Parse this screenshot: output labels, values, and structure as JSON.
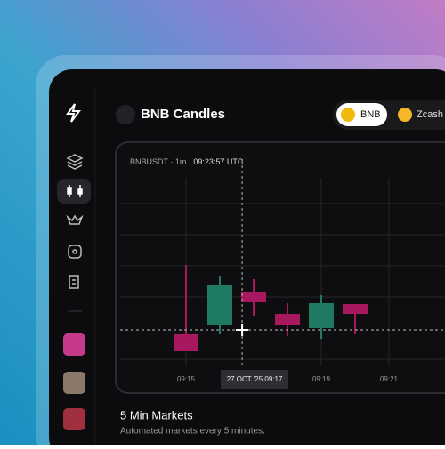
{
  "header": {
    "title": "BNB Candles"
  },
  "tabs": [
    {
      "label": "BNB"
    },
    {
      "label": "Zcash"
    }
  ],
  "chart": {
    "type": "candlestick",
    "symbol": "BNBUSDT",
    "interval": "1m",
    "time": "09:23:57 UTC",
    "ylim": [
      0,
      240
    ],
    "up_color": "#1e7a62",
    "down_color": "#a8185f",
    "candles": [
      {
        "open": 64,
        "high": 142,
        "low": 45,
        "close": 45
      },
      {
        "open": 75,
        "high": 130,
        "low": 64,
        "close": 119
      },
      {
        "open": 112,
        "high": 126,
        "low": 85,
        "close": 100
      },
      {
        "open": 87,
        "high": 99,
        "low": 62,
        "close": 75
      },
      {
        "open": 71,
        "high": 108,
        "low": 59,
        "close": 99
      },
      {
        "open": 98,
        "high": 98,
        "low": 64,
        "close": 87
      }
    ],
    "xticks": [
      {
        "value": 0,
        "label": "09:15"
      },
      {
        "value": 4,
        "label": "09:19"
      },
      {
        "value": 6,
        "label": "09:21"
      }
    ],
    "crosshair": {
      "x": 1.66,
      "y": 69,
      "label": "27 OCT '25 09:17"
    }
  },
  "section": {
    "title": "5 Min Markets",
    "subtitle": "Automated markets every 5 minutes."
  }
}
